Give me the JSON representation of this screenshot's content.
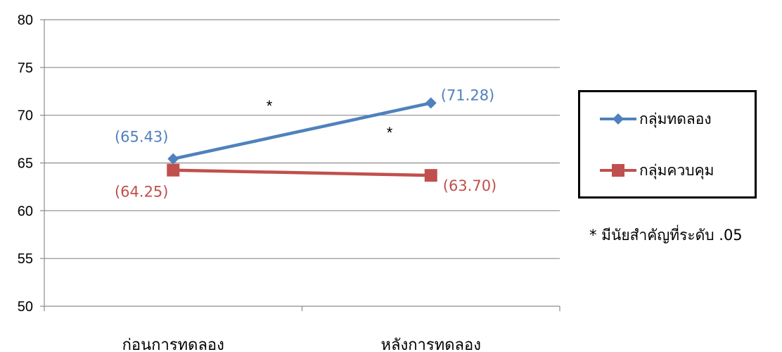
{
  "chart_data": {
    "type": "line",
    "categories": [
      "ก่อนการทดลอง",
      "หลังการทดลอง"
    ],
    "series": [
      {
        "name": "กลุ่มทดลอง",
        "values": [
          65.43,
          71.28
        ],
        "color": "#4F81BD",
        "marker": "diamond",
        "labels": [
          "(65.43)",
          "(71.28)"
        ]
      },
      {
        "name": "กลุ่มควบคุม",
        "values": [
          64.25,
          63.7
        ],
        "color": "#C0504D",
        "marker": "square",
        "labels": [
          "(64.25)",
          "(63.70)"
        ]
      }
    ],
    "ylim": [
      50,
      80
    ],
    "yticks": [
      50,
      55,
      60,
      65,
      70,
      75,
      80
    ],
    "grid": true,
    "legend_position": "right",
    "annotations": [
      "*",
      "*"
    ],
    "note": "* มีนัยสำคัญที่ระดับ .05"
  }
}
